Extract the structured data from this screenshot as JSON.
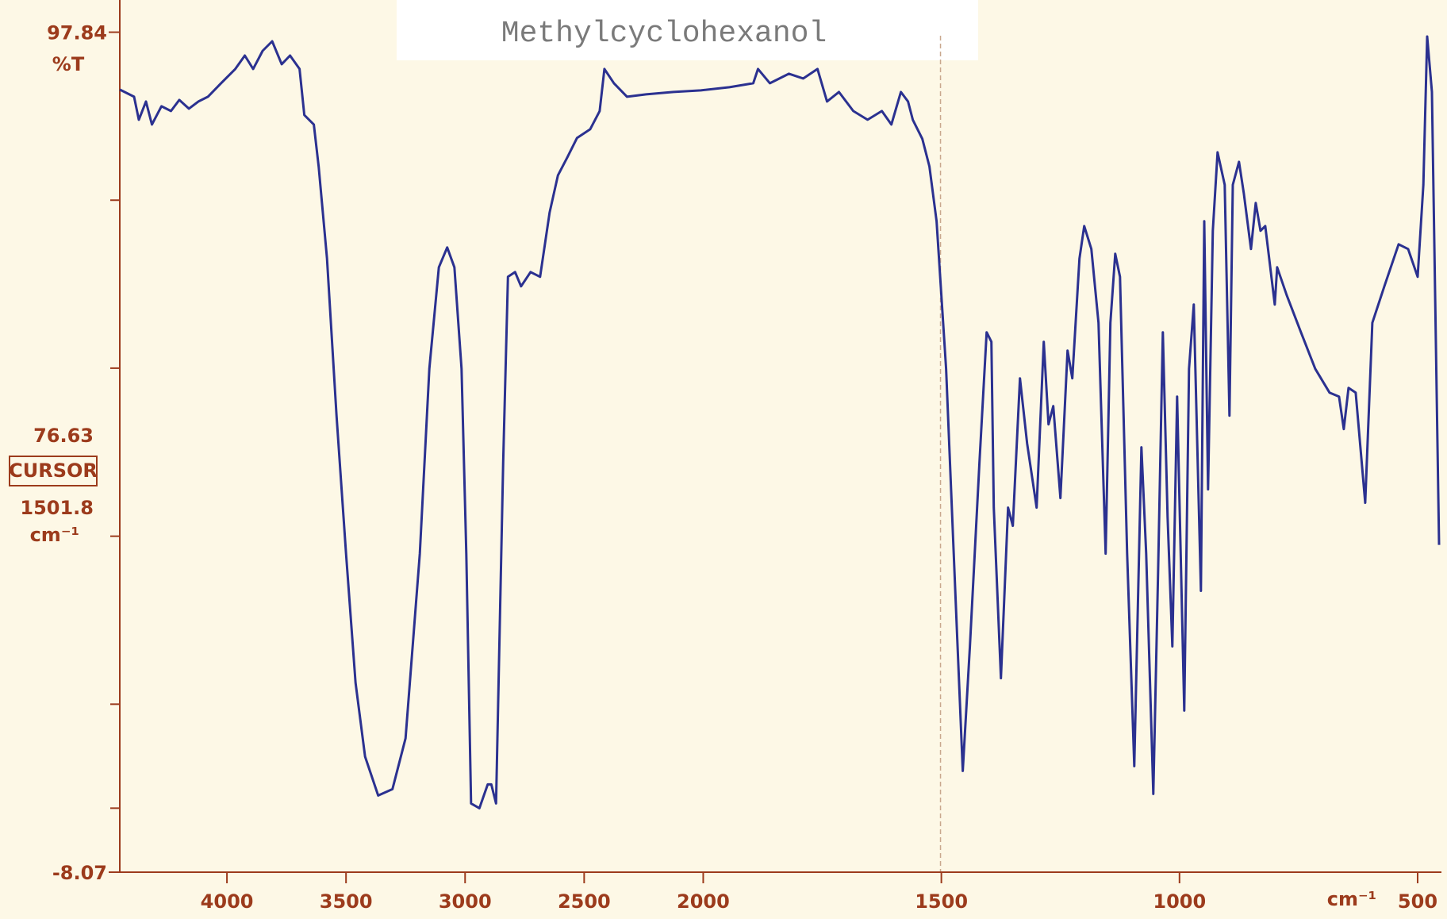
{
  "chart_data": {
    "type": "line",
    "title": "Methylcyclohexanol",
    "ylabel": "%T",
    "xlabel": "cm⁻¹",
    "color": "#2b3190",
    "axis_color": "#9c3b1c",
    "xlim": [
      4450,
      450
    ],
    "x_scale_break": 2000,
    "x_scale_factor": 2,
    "xticks": [
      4000,
      3500,
      3000,
      2500,
      2000,
      1500,
      1000,
      500
    ],
    "ylim": [
      -8.07,
      101.9
    ],
    "yticks": [
      97.84,
      -8.07
    ],
    "yminorticks": [
      76.66,
      55.48,
      34.29,
      13.11,
      0
    ],
    "cursor": {
      "transmittance": 76.63,
      "label": "CURSOR",
      "wavenumber": 1501.8,
      "unit": "cm⁻¹"
    },
    "x": [
      4450,
      4390,
      4370,
      4340,
      4315,
      4275,
      4235,
      4200,
      4160,
      4120,
      4080,
      4025,
      3965,
      3925,
      3890,
      3850,
      3810,
      3770,
      3735,
      3695,
      3675,
      3635,
      3615,
      3580,
      3540,
      3500,
      3460,
      3420,
      3365,
      3305,
      3250,
      3190,
      3150,
      3110,
      3075,
      3045,
      3015,
      2995,
      2975,
      2940,
      2905,
      2890,
      2870,
      2840,
      2820,
      2790,
      2765,
      2725,
      2685,
      2645,
      2610,
      2570,
      2530,
      2475,
      2435,
      2415,
      2375,
      2320,
      2240,
      2125,
      2010,
      1945,
      1895,
      1885,
      1860,
      1820,
      1790,
      1760,
      1740,
      1715,
      1685,
      1655,
      1625,
      1605,
      1585,
      1570,
      1560,
      1540,
      1525,
      1510,
      1490,
      1470,
      1455,
      1440,
      1420,
      1405,
      1395,
      1390,
      1375,
      1360,
      1350,
      1335,
      1320,
      1300,
      1285,
      1275,
      1265,
      1250,
      1235,
      1225,
      1210,
      1200,
      1185,
      1170,
      1155,
      1145,
      1135,
      1125,
      1110,
      1095,
      1085,
      1080,
      1070,
      1055,
      1045,
      1035,
      1025,
      1015,
      1005,
      990,
      980,
      970,
      955,
      948,
      940,
      930,
      920,
      905,
      895,
      888,
      875,
      865,
      850,
      840,
      830,
      820,
      800,
      795,
      775,
      745,
      715,
      685,
      665,
      655,
      645,
      630,
      610,
      595,
      570,
      540,
      520,
      500,
      488,
      480,
      470,
      455
    ],
    "values": [
      90.6,
      89.7,
      86.8,
      89.1,
      86.2,
      88.5,
      87.9,
      89.3,
      88.2,
      89.1,
      89.7,
      91.4,
      93.2,
      94.9,
      93.2,
      95.5,
      96.7,
      93.8,
      94.9,
      93.2,
      87.4,
      86.2,
      80.9,
      69.3,
      49.5,
      32.1,
      15.8,
      6.5,
      1.6,
      2.4,
      8.8,
      32.1,
      55.4,
      68.2,
      70.7,
      68.2,
      55.4,
      32.1,
      0.6,
      0.0,
      3.0,
      3.0,
      0.6,
      43.7,
      67.0,
      67.6,
      65.8,
      67.6,
      67.0,
      75.1,
      79.8,
      82.1,
      84.5,
      85.6,
      87.9,
      93.2,
      91.4,
      89.7,
      90.0,
      90.3,
      90.5,
      90.9,
      91.4,
      93.2,
      91.4,
      92.6,
      92.0,
      93.2,
      89.1,
      90.3,
      87.9,
      86.8,
      87.9,
      86.2,
      90.3,
      89.1,
      86.8,
      84.4,
      80.9,
      74.0,
      55.4,
      26.3,
      4.7,
      20.4,
      43.7,
      60.0,
      58.8,
      37.9,
      16.4,
      37.9,
      35.6,
      54.2,
      46.0,
      37.9,
      58.8,
      48.4,
      50.7,
      39.1,
      57.7,
      54.2,
      69.3,
      73.4,
      70.5,
      61.2,
      32.1,
      61.2,
      69.9,
      67.0,
      32.1,
      5.3,
      32.1,
      45.5,
      32.1,
      1.8,
      29.7,
      60.0,
      36.7,
      20.4,
      51.9,
      12.3,
      55.4,
      63.5,
      27.4,
      74.0,
      40.2,
      72.8,
      82.7,
      78.6,
      49.5,
      78.6,
      81.5,
      77.5,
      70.5,
      76.3,
      72.8,
      73.4,
      63.5,
      68.2,
      64.7,
      60.0,
      55.4,
      52.4,
      51.9,
      47.8,
      53.0,
      52.4,
      38.5,
      61.2,
      65.8,
      71.1,
      70.5,
      67.0,
      78.6,
      97.3,
      90.3,
      33.2
    ]
  }
}
